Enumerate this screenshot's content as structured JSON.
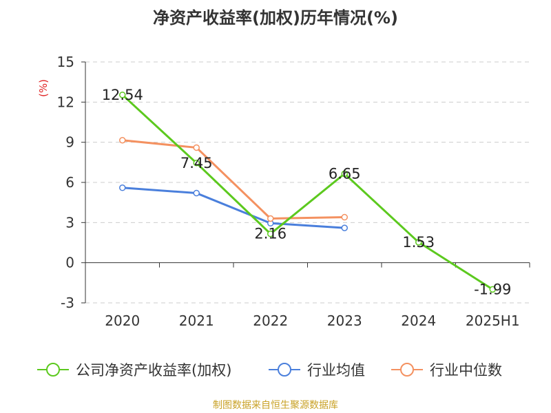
{
  "chart_data": {
    "type": "line",
    "title": "净资产收益率(加权)历年情况(%)",
    "ylabel": "(%)",
    "categories": [
      "2020",
      "2021",
      "2022",
      "2023",
      "2024",
      "2025H1"
    ],
    "ylim": [
      -3,
      15
    ],
    "yticks": [
      15,
      12,
      9,
      6,
      3,
      0,
      -3
    ],
    "ytick_labels": [
      "15",
      "12",
      "9",
      "6",
      "3",
      "0",
      "-3"
    ],
    "grid": true,
    "legend_position": "bottom",
    "series": [
      {
        "name": "公司净资产收益率(加权)",
        "color": "#5cc91e",
        "values": [
          12.54,
          7.45,
          2.16,
          6.65,
          1.53,
          -1.99
        ],
        "labels": [
          "12.54",
          "7.45",
          "2.16",
          "6.65",
          "1.53",
          "-1.99"
        ]
      },
      {
        "name": "行业均值",
        "color": "#4a7fdc",
        "values": [
          5.6,
          5.2,
          2.95,
          2.6,
          null,
          null
        ]
      },
      {
        "name": "行业中位数",
        "color": "#f49160",
        "values": [
          9.15,
          8.6,
          3.3,
          3.4,
          null,
          null
        ]
      }
    ]
  },
  "source": "制图数据来自恒生聚源数据库"
}
